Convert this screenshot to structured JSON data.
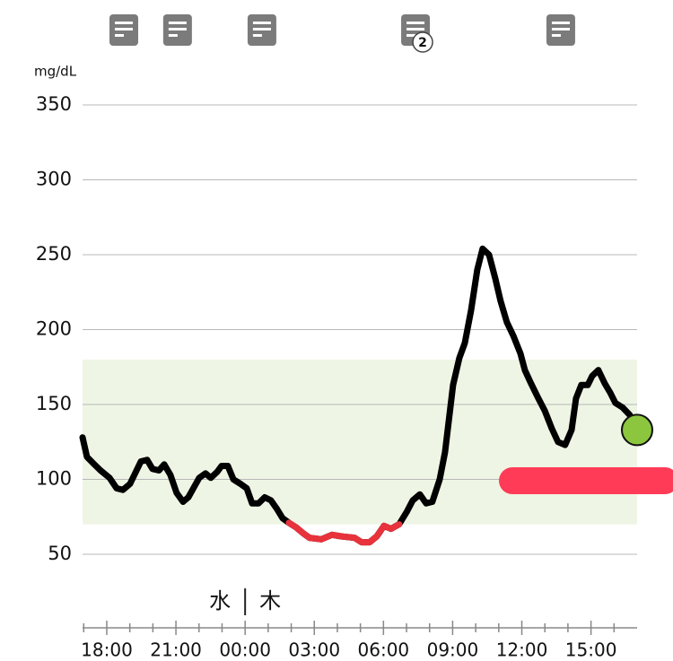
{
  "chart_data": {
    "type": "line",
    "y_unit": "mg/dL",
    "xlim": [
      16.95,
      41.0
    ],
    "ylim": [
      50,
      350
    ],
    "yticks": [
      50,
      100,
      150,
      200,
      250,
      300,
      350
    ],
    "xticks": [
      {
        "value": 18,
        "label": "18:00"
      },
      {
        "value": 21,
        "label": "21:00"
      },
      {
        "value": 24,
        "label": "00:00"
      },
      {
        "value": 27,
        "label": "03:00"
      },
      {
        "value": 30,
        "label": "06:00"
      },
      {
        "value": 33,
        "label": "09:00"
      },
      {
        "value": 36,
        "label": "12:00"
      },
      {
        "value": 39,
        "label": "15:00"
      }
    ],
    "minor_xticks": [
      17,
      19,
      20,
      22,
      23,
      25,
      26,
      28,
      29,
      31,
      32,
      34,
      35,
      37,
      38,
      40
    ],
    "grid": true,
    "target_range": [
      70,
      180
    ],
    "target_color": "#eef5e4",
    "low_color": "#e8323c",
    "current_color": "#8cc63f",
    "day_labels": [
      "水",
      "木"
    ],
    "day_divider": 24,
    "notes": [
      {
        "x": 18.74
      },
      {
        "x": 21.07
      },
      {
        "x": 24.73
      },
      {
        "x": 31.39,
        "count": 2
      },
      {
        "x": 37.69
      }
    ],
    "series": [
      {
        "name": "glucose",
        "color": "#000000",
        "x": [
          16.95,
          17.14,
          17.46,
          17.73,
          18.12,
          18.43,
          18.7,
          19.01,
          19.48,
          19.75,
          19.98,
          20.26,
          20.49,
          20.76,
          21.03,
          21.31,
          21.54,
          22.01,
          22.28,
          22.51,
          22.79,
          22.98,
          23.25,
          23.49,
          23.8,
          24.07,
          24.3,
          24.58,
          24.85,
          25.12,
          25.39,
          25.63,
          25.9,
          26.21,
          26.52,
          26.79,
          27.3,
          27.77,
          28.16,
          28.74,
          29.05,
          29.4,
          29.71,
          30.02,
          30.33,
          30.68,
          31.0,
          31.27,
          31.58,
          31.85,
          32.12,
          32.44,
          32.67,
          33.02,
          33.29,
          33.53,
          33.8,
          34.07,
          34.3,
          34.58,
          34.85,
          35.08,
          35.35,
          35.63,
          35.94,
          36.13,
          36.4,
          36.72,
          36.99,
          37.3,
          37.57,
          37.88,
          38.16,
          38.35,
          38.58,
          38.86,
          39.05,
          39.32,
          39.6,
          39.83,
          40.06,
          40.37,
          40.68,
          41.0
        ],
        "values": [
          128,
          115,
          110,
          106,
          101,
          94,
          93,
          97,
          112,
          113,
          107,
          106,
          110,
          103,
          91,
          85,
          88,
          101,
          104,
          101,
          105,
          109,
          109,
          100,
          97,
          94,
          84,
          84,
          88,
          86,
          80,
          74,
          71,
          68,
          64,
          61,
          60,
          63,
          62,
          61,
          58,
          58,
          62,
          69,
          67,
          70,
          78,
          86,
          90,
          84,
          85,
          100,
          118,
          163,
          181,
          191,
          213,
          240,
          254,
          250,
          234,
          219,
          205,
          196,
          184,
          173,
          164,
          154,
          146,
          134,
          125,
          123,
          133,
          154,
          163,
          163,
          169,
          173,
          164,
          158,
          151,
          148,
          143,
          133
        ]
      }
    ]
  }
}
